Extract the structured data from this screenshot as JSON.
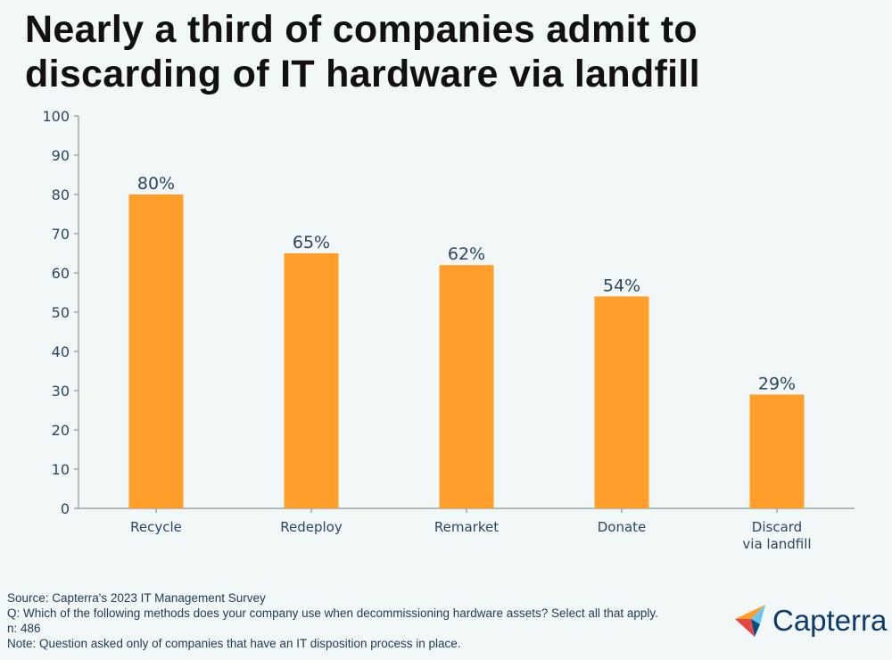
{
  "chart_data": {
    "type": "bar",
    "title": "Nearly a third of companies admit to discarding of IT hardware via landfill",
    "categories": [
      "Recycle",
      "Redeploy",
      "Remarket",
      "Donate",
      "Discard via landfill"
    ],
    "category_lines": [
      [
        "Recycle"
      ],
      [
        "Redeploy"
      ],
      [
        "Remarket"
      ],
      [
        "Donate"
      ],
      [
        "Discard",
        "via landfill"
      ]
    ],
    "values": [
      80,
      65,
      62,
      54,
      29
    ],
    "data_labels": [
      "80%",
      "65%",
      "62%",
      "54%",
      "29%"
    ],
    "yticks": [
      0,
      10,
      20,
      30,
      40,
      50,
      60,
      70,
      80,
      90,
      100
    ],
    "ylim": [
      0,
      100
    ],
    "xlabel": "",
    "ylabel": "",
    "grid": false,
    "bar_color": "#ff9f2a"
  },
  "notes": {
    "source": "Source: Capterra's 2023 IT Management Survey",
    "question": "Q: Which of the following methods does your company use when decommissioning hardware assets? Select all that apply.",
    "n": "n: 486",
    "note": "Note: Question asked only of companies that have an IT disposition process in place."
  },
  "logo": {
    "text": "Capterra"
  }
}
